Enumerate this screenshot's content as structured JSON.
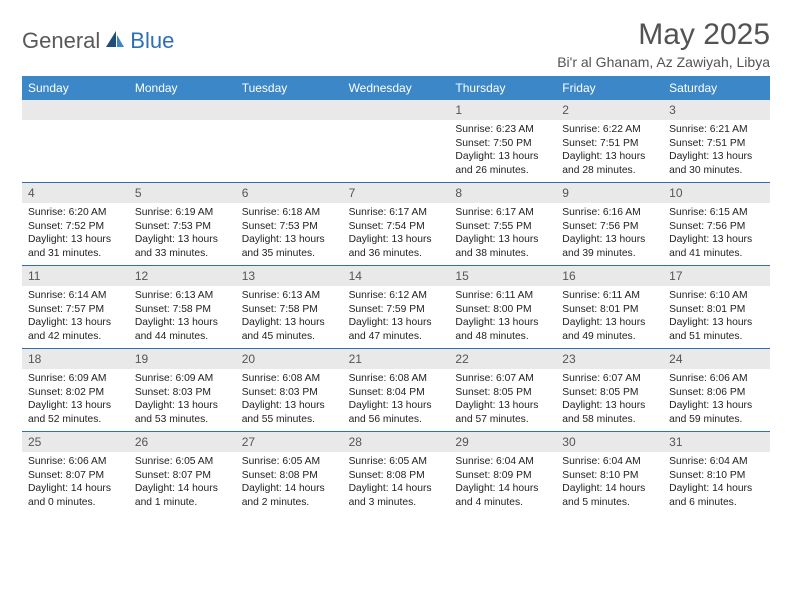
{
  "brand": {
    "left": "General",
    "right": "Blue"
  },
  "colors": {
    "header_bg": "#3c87c7",
    "rule": "#2f6fb4",
    "daynum_bg": "#e9e9e9",
    "text": "#222222",
    "title": "#535353",
    "logo_gray": "#595959",
    "logo_blue": "#2f6fb4",
    "sail_dark": "#1f4e7a",
    "sail_light": "#3c87c7",
    "white": "#ffffff"
  },
  "title": "May 2025",
  "subtitle": "Bi'r al Ghanam, Az Zawiyah, Libya",
  "dow": [
    "Sunday",
    "Monday",
    "Tuesday",
    "Wednesday",
    "Thursday",
    "Friday",
    "Saturday"
  ],
  "weeks": [
    [
      null,
      null,
      null,
      null,
      {
        "n": "1",
        "sr": "Sunrise: 6:23 AM",
        "ss": "Sunset: 7:50 PM",
        "dl": "Daylight: 13 hours and 26 minutes."
      },
      {
        "n": "2",
        "sr": "Sunrise: 6:22 AM",
        "ss": "Sunset: 7:51 PM",
        "dl": "Daylight: 13 hours and 28 minutes."
      },
      {
        "n": "3",
        "sr": "Sunrise: 6:21 AM",
        "ss": "Sunset: 7:51 PM",
        "dl": "Daylight: 13 hours and 30 minutes."
      }
    ],
    [
      {
        "n": "4",
        "sr": "Sunrise: 6:20 AM",
        "ss": "Sunset: 7:52 PM",
        "dl": "Daylight: 13 hours and 31 minutes."
      },
      {
        "n": "5",
        "sr": "Sunrise: 6:19 AM",
        "ss": "Sunset: 7:53 PM",
        "dl": "Daylight: 13 hours and 33 minutes."
      },
      {
        "n": "6",
        "sr": "Sunrise: 6:18 AM",
        "ss": "Sunset: 7:53 PM",
        "dl": "Daylight: 13 hours and 35 minutes."
      },
      {
        "n": "7",
        "sr": "Sunrise: 6:17 AM",
        "ss": "Sunset: 7:54 PM",
        "dl": "Daylight: 13 hours and 36 minutes."
      },
      {
        "n": "8",
        "sr": "Sunrise: 6:17 AM",
        "ss": "Sunset: 7:55 PM",
        "dl": "Daylight: 13 hours and 38 minutes."
      },
      {
        "n": "9",
        "sr": "Sunrise: 6:16 AM",
        "ss": "Sunset: 7:56 PM",
        "dl": "Daylight: 13 hours and 39 minutes."
      },
      {
        "n": "10",
        "sr": "Sunrise: 6:15 AM",
        "ss": "Sunset: 7:56 PM",
        "dl": "Daylight: 13 hours and 41 minutes."
      }
    ],
    [
      {
        "n": "11",
        "sr": "Sunrise: 6:14 AM",
        "ss": "Sunset: 7:57 PM",
        "dl": "Daylight: 13 hours and 42 minutes."
      },
      {
        "n": "12",
        "sr": "Sunrise: 6:13 AM",
        "ss": "Sunset: 7:58 PM",
        "dl": "Daylight: 13 hours and 44 minutes."
      },
      {
        "n": "13",
        "sr": "Sunrise: 6:13 AM",
        "ss": "Sunset: 7:58 PM",
        "dl": "Daylight: 13 hours and 45 minutes."
      },
      {
        "n": "14",
        "sr": "Sunrise: 6:12 AM",
        "ss": "Sunset: 7:59 PM",
        "dl": "Daylight: 13 hours and 47 minutes."
      },
      {
        "n": "15",
        "sr": "Sunrise: 6:11 AM",
        "ss": "Sunset: 8:00 PM",
        "dl": "Daylight: 13 hours and 48 minutes."
      },
      {
        "n": "16",
        "sr": "Sunrise: 6:11 AM",
        "ss": "Sunset: 8:01 PM",
        "dl": "Daylight: 13 hours and 49 minutes."
      },
      {
        "n": "17",
        "sr": "Sunrise: 6:10 AM",
        "ss": "Sunset: 8:01 PM",
        "dl": "Daylight: 13 hours and 51 minutes."
      }
    ],
    [
      {
        "n": "18",
        "sr": "Sunrise: 6:09 AM",
        "ss": "Sunset: 8:02 PM",
        "dl": "Daylight: 13 hours and 52 minutes."
      },
      {
        "n": "19",
        "sr": "Sunrise: 6:09 AM",
        "ss": "Sunset: 8:03 PM",
        "dl": "Daylight: 13 hours and 53 minutes."
      },
      {
        "n": "20",
        "sr": "Sunrise: 6:08 AM",
        "ss": "Sunset: 8:03 PM",
        "dl": "Daylight: 13 hours and 55 minutes."
      },
      {
        "n": "21",
        "sr": "Sunrise: 6:08 AM",
        "ss": "Sunset: 8:04 PM",
        "dl": "Daylight: 13 hours and 56 minutes."
      },
      {
        "n": "22",
        "sr": "Sunrise: 6:07 AM",
        "ss": "Sunset: 8:05 PM",
        "dl": "Daylight: 13 hours and 57 minutes."
      },
      {
        "n": "23",
        "sr": "Sunrise: 6:07 AM",
        "ss": "Sunset: 8:05 PM",
        "dl": "Daylight: 13 hours and 58 minutes."
      },
      {
        "n": "24",
        "sr": "Sunrise: 6:06 AM",
        "ss": "Sunset: 8:06 PM",
        "dl": "Daylight: 13 hours and 59 minutes."
      }
    ],
    [
      {
        "n": "25",
        "sr": "Sunrise: 6:06 AM",
        "ss": "Sunset: 8:07 PM",
        "dl": "Daylight: 14 hours and 0 minutes."
      },
      {
        "n": "26",
        "sr": "Sunrise: 6:05 AM",
        "ss": "Sunset: 8:07 PM",
        "dl": "Daylight: 14 hours and 1 minute."
      },
      {
        "n": "27",
        "sr": "Sunrise: 6:05 AM",
        "ss": "Sunset: 8:08 PM",
        "dl": "Daylight: 14 hours and 2 minutes."
      },
      {
        "n": "28",
        "sr": "Sunrise: 6:05 AM",
        "ss": "Sunset: 8:08 PM",
        "dl": "Daylight: 14 hours and 3 minutes."
      },
      {
        "n": "29",
        "sr": "Sunrise: 6:04 AM",
        "ss": "Sunset: 8:09 PM",
        "dl": "Daylight: 14 hours and 4 minutes."
      },
      {
        "n": "30",
        "sr": "Sunrise: 6:04 AM",
        "ss": "Sunset: 8:10 PM",
        "dl": "Daylight: 14 hours and 5 minutes."
      },
      {
        "n": "31",
        "sr": "Sunrise: 6:04 AM",
        "ss": "Sunset: 8:10 PM",
        "dl": "Daylight: 14 hours and 6 minutes."
      }
    ]
  ]
}
